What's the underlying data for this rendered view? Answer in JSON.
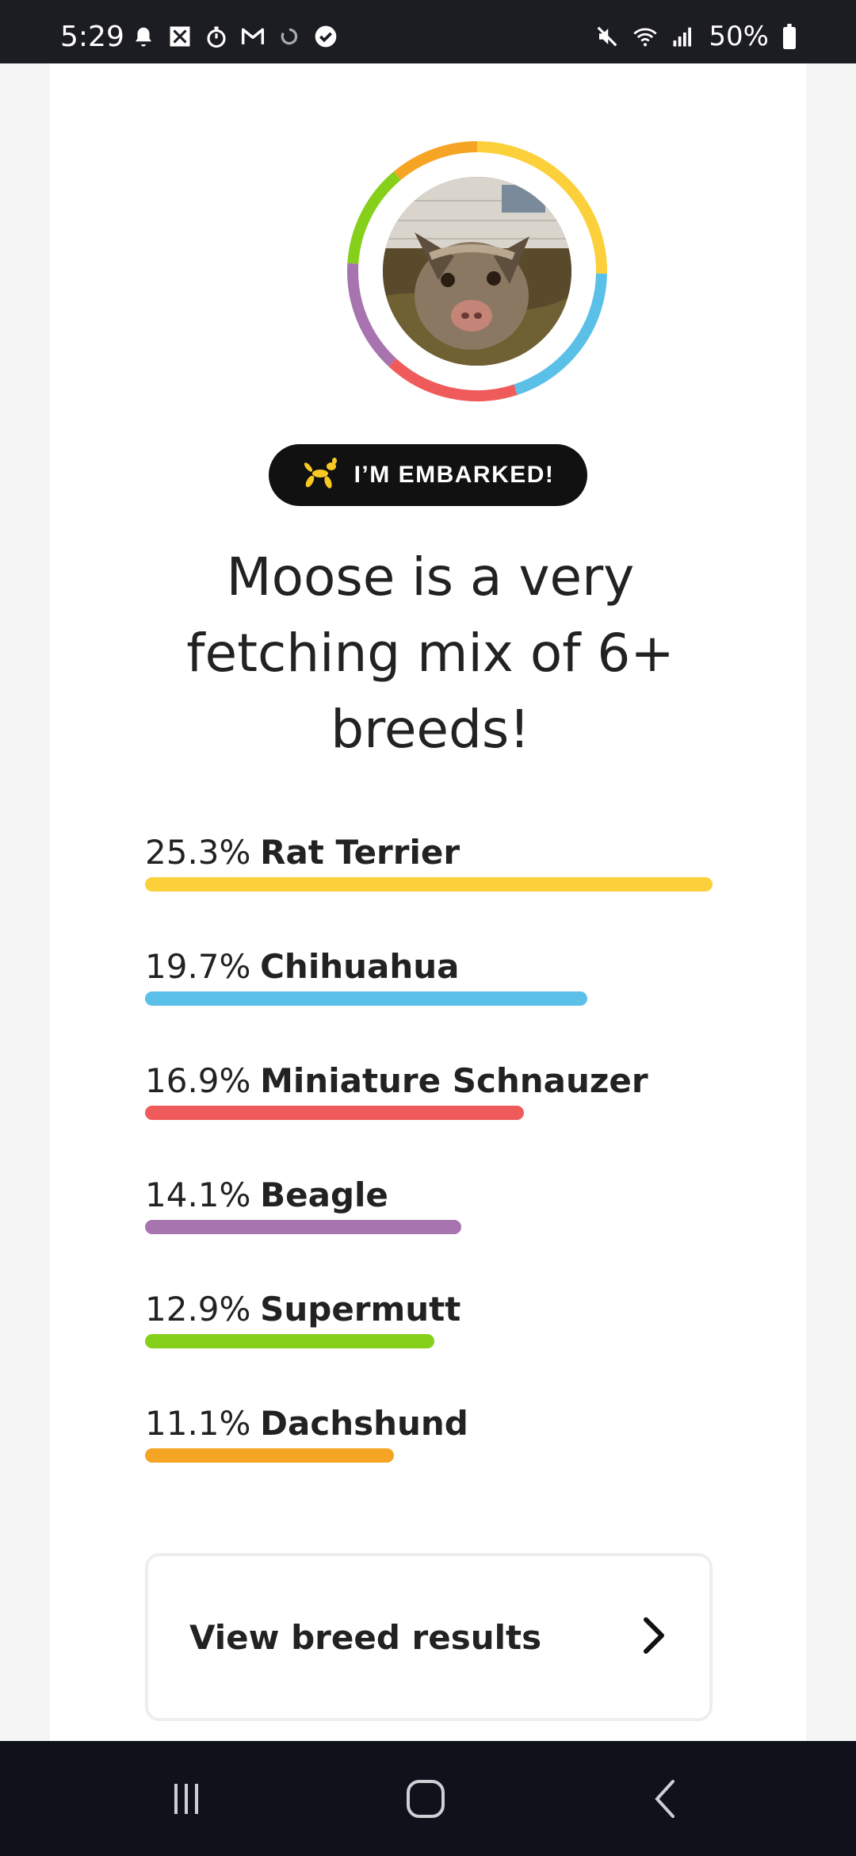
{
  "status_bar": {
    "time": "5:29",
    "battery": "50%",
    "left_icons": [
      "bell-icon",
      "app-icon",
      "timer-icon",
      "gmail-icon",
      "sync-icon",
      "check-circle-icon"
    ],
    "right_icons": [
      "mute-icon",
      "wifi-icon",
      "signal-icon",
      "battery-icon"
    ]
  },
  "profile": {
    "ring_colors": [
      "#fcd03b",
      "#5bc0e8",
      "#ef5b5b",
      "#a774b0",
      "#86cf1a",
      "#f5a423"
    ]
  },
  "badge": {
    "icon": "balloon-dog-icon",
    "label": "I’M EMBARKED!"
  },
  "headline": {
    "line1": "Moose is a very",
    "line2": "fetching mix of 6+",
    "line3": "breeds!"
  },
  "breeds": [
    {
      "percent": "25.3%",
      "name": "Rat Terrier",
      "value": 25.3,
      "color": "#fcd03b"
    },
    {
      "percent": "19.7%",
      "name": "Chihuahua",
      "value": 19.7,
      "color": "#5bc0e8"
    },
    {
      "percent": "16.9%",
      "name": "Miniature Schnauzer",
      "value": 16.9,
      "color": "#ef5b5b"
    },
    {
      "percent": "14.1%",
      "name": "Beagle",
      "value": 14.1,
      "color": "#a774b0"
    },
    {
      "percent": "12.9%",
      "name": "Supermutt",
      "value": 12.9,
      "color": "#86cf1a"
    },
    {
      "percent": "11.1%",
      "name": "Dachshund",
      "value": 11.1,
      "color": "#f5a423"
    }
  ],
  "results_button": {
    "label": "View breed results",
    "icon": "chevron-right-icon"
  },
  "nav_bar": {
    "icons": [
      "recent-apps-icon",
      "home-icon",
      "back-icon"
    ]
  }
}
